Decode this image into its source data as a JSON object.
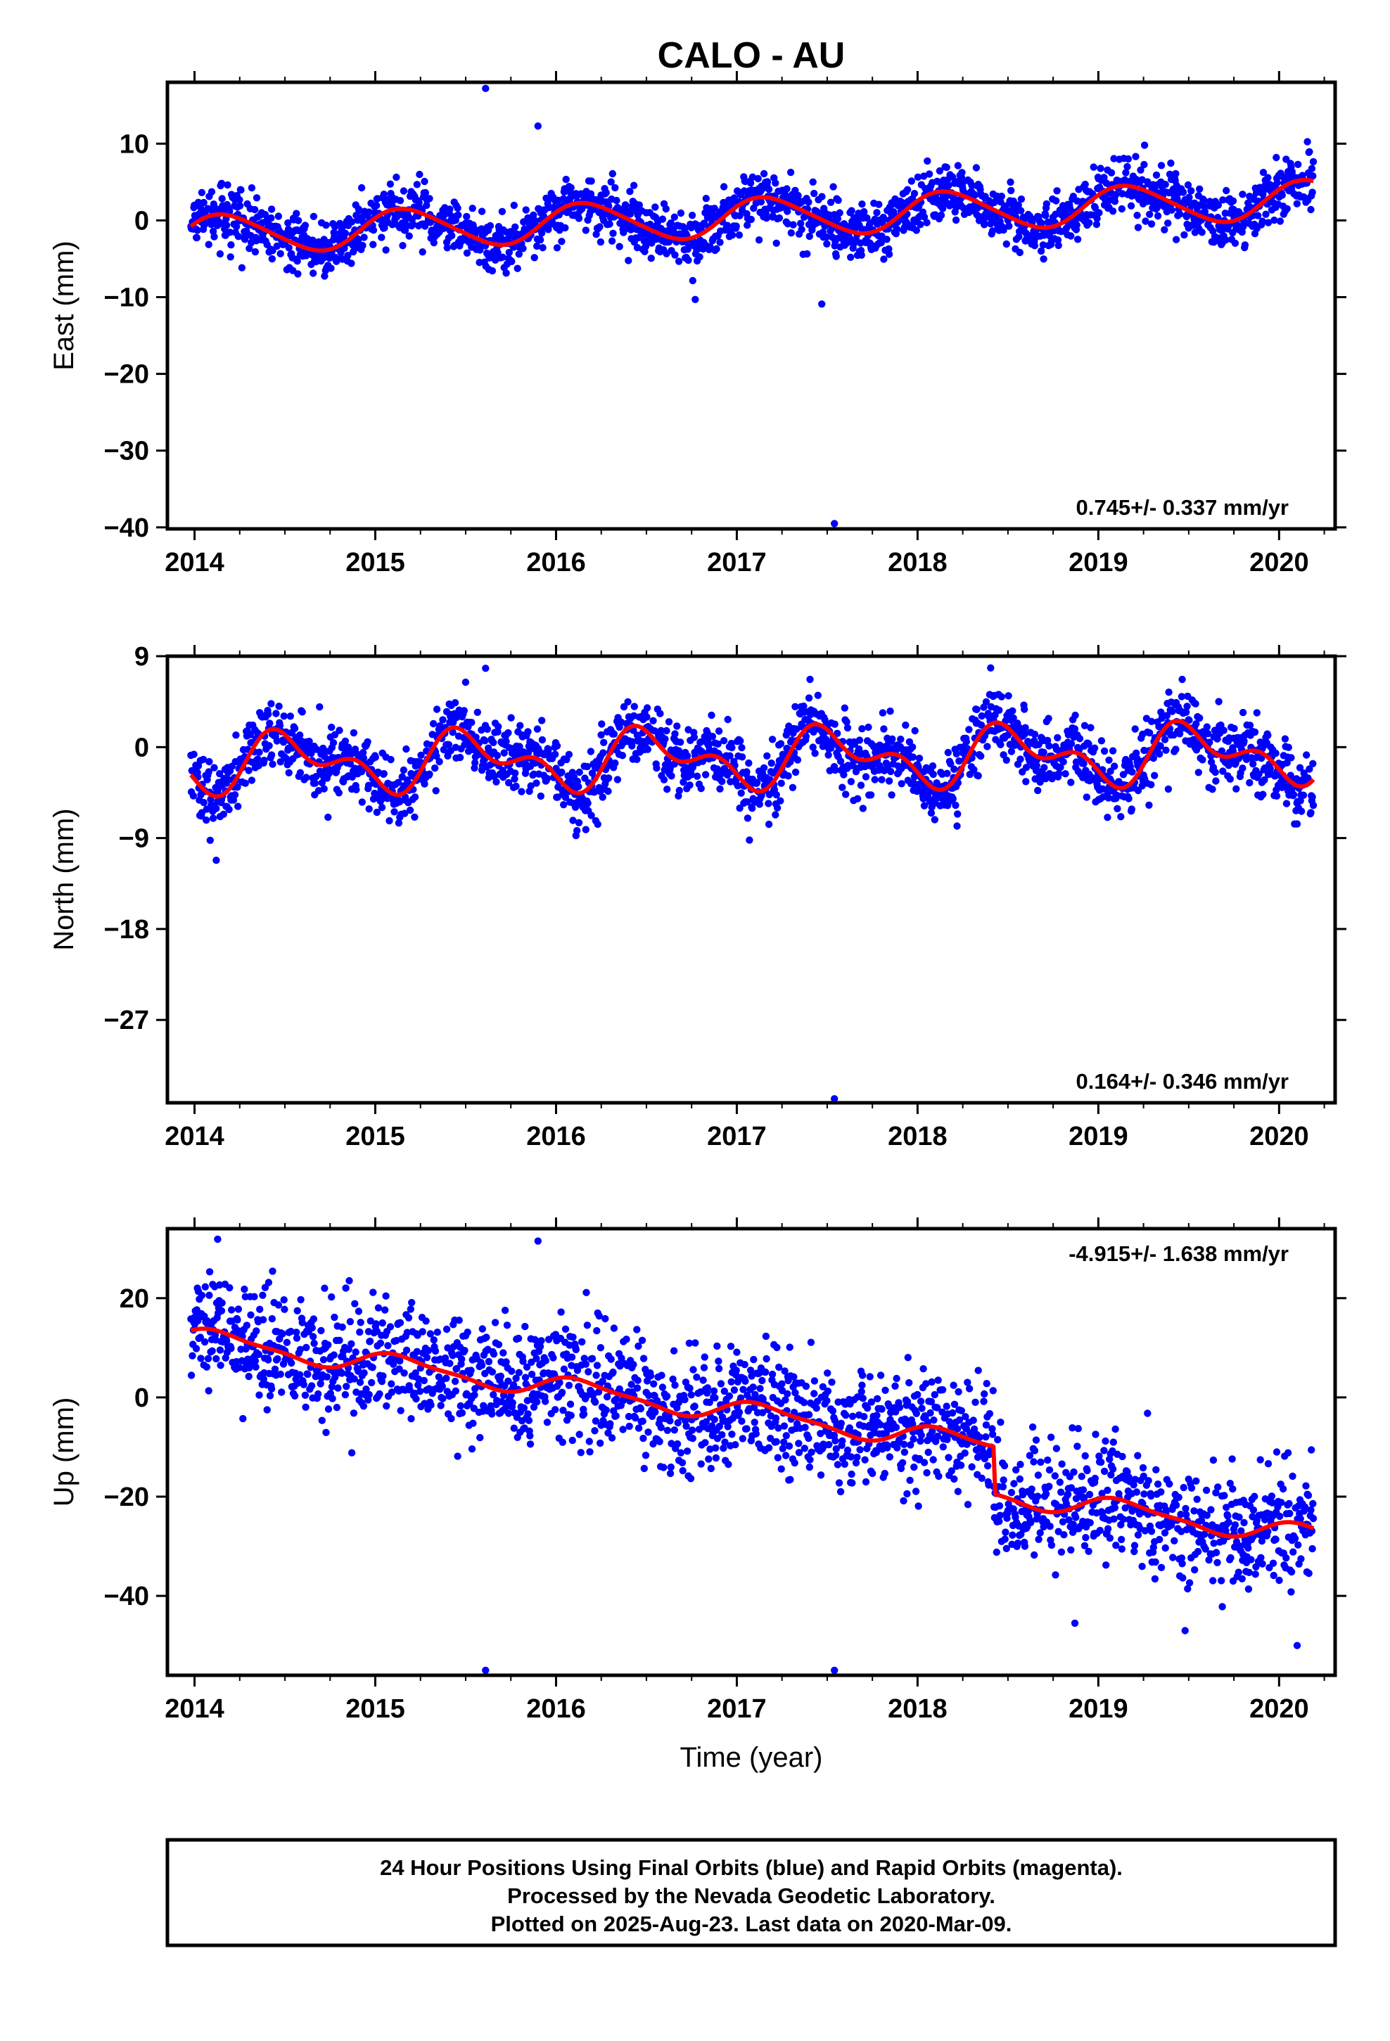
{
  "title": "CALO - AU",
  "colors": {
    "points": "#0000ff",
    "fit": "#ff0000",
    "frame": "#000000"
  },
  "footer": [
    "24 Hour Positions Using Final Orbits (blue) and Rapid Orbits (magenta).",
    "Processed by the Nevada Geodetic Laboratory.",
    "Plotted on 2025-Aug-23. Last data on 2020-Mar-09."
  ],
  "chart_data": [
    {
      "type": "scatter",
      "name": "east",
      "ylabel": "East (mm)",
      "xlim": [
        2013.85,
        2020.31
      ],
      "ylim": [
        -40.2,
        18.0
      ],
      "xticks": [
        2014,
        2015,
        2016,
        2017,
        2018,
        2019,
        2020
      ],
      "yticks": [
        10,
        0,
        -10,
        -20,
        -30,
        -40
      ],
      "ytick_labels": [
        "10",
        "0",
        "−10",
        "−20",
        "−30",
        "−40"
      ],
      "rate_text": "0.745+/- 0.337 mm/yr",
      "rate_position": "bottom-right",
      "series": {
        "start": 2013.98,
        "end": 2020.19,
        "trend": 0.745,
        "offset": -1.9,
        "annual_amp": 2.5,
        "annual_phase": 0.92,
        "semiannual_amp": 0.3,
        "scatter": 1.8
      },
      "outliers": [
        [
          2015.61,
          17.2
        ],
        [
          2015.9,
          12.3
        ],
        [
          2016.77,
          -10.3
        ],
        [
          2017.47,
          -10.9
        ],
        [
          2017.54,
          -39.5
        ]
      ]
    },
    {
      "type": "scatter",
      "name": "north",
      "ylabel": "North (mm)",
      "xlim": [
        2013.85,
        2020.31
      ],
      "ylim": [
        -35.2,
        9.0
      ],
      "xticks": [
        2014,
        2015,
        2016,
        2017,
        2018,
        2019,
        2020
      ],
      "yticks": [
        9,
        0,
        -9,
        -18,
        -27
      ],
      "ytick_labels": [
        "9",
        "0",
        "−9",
        "−18",
        "−27"
      ],
      "rate_text": "0.164+/- 0.346 mm/yr",
      "rate_position": "bottom-right",
      "series": {
        "start": 2013.98,
        "end": 2020.19,
        "trend": 0.164,
        "offset": -1.6,
        "annual_amp": 2.2,
        "annual_phase": 0.28,
        "semiannual_amp": 1.6,
        "scatter": 1.7
      },
      "outliers": [
        [
          2014.12,
          -11.2
        ],
        [
          2015.61,
          7.8
        ],
        [
          2017.07,
          -9.2
        ],
        [
          2017.54,
          -34.8
        ],
        [
          2020.1,
          -7.6
        ]
      ]
    },
    {
      "type": "scatter",
      "name": "up",
      "ylabel": "Up (mm)",
      "xlabel": "Time (year)",
      "xlim": [
        2013.85,
        2020.31
      ],
      "ylim": [
        -56.0,
        34.0
      ],
      "xticks": [
        2014,
        2015,
        2016,
        2017,
        2018,
        2019,
        2020
      ],
      "yticks": [
        20,
        0,
        -20,
        -40
      ],
      "ytick_labels": [
        "20",
        "0",
        "−20",
        "−40"
      ],
      "rate_text": "-4.915+/- 1.638 mm/yr",
      "rate_position": "top-right",
      "series": {
        "start": 2013.98,
        "end": 2020.19,
        "trend": -4.915,
        "offset": 12.0,
        "annual_amp": 2.0,
        "annual_phase": 0.9,
        "semiannual_amp": 0.6,
        "scatter": 6.0,
        "step_time": 2018.42,
        "step_size": -9.5
      },
      "outliers": [
        [
          2015.61,
          -55.0
        ],
        [
          2015.9,
          31.5
        ],
        [
          2017.54,
          -55.0
        ],
        [
          2018.87,
          -45.5
        ],
        [
          2019.48,
          -47.0
        ],
        [
          2020.1,
          -50.0
        ]
      ]
    }
  ]
}
